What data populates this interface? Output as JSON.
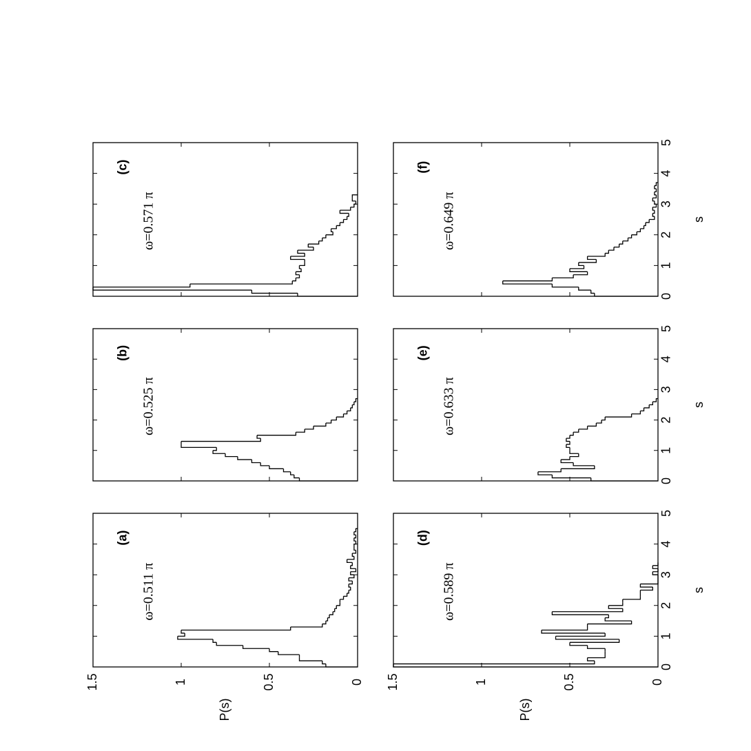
{
  "chart_data": [
    {
      "type": "histogram",
      "label": "(a)",
      "annotation": "ω=0.511 π",
      "ylabel": "P(s)",
      "xlim": [
        0,
        5
      ],
      "ylim": [
        0,
        1.5
      ],
      "xticks": [
        0,
        1,
        2,
        3,
        4,
        5
      ],
      "yticks": [
        0,
        0.5,
        1,
        1.5
      ],
      "bins": [
        0,
        0.1,
        0.2,
        0.3,
        0.4,
        0.5,
        0.6,
        0.7,
        0.8,
        0.9,
        1,
        1.1,
        1.2,
        1.3,
        1.4,
        1.5,
        1.6,
        1.7,
        1.8,
        1.9,
        2,
        2.1,
        2.2,
        2.3,
        2.4,
        2.5,
        2.6,
        2.7,
        2.8,
        2.9,
        3,
        3.1,
        3.2,
        3.3,
        3.4,
        3.5,
        3.6,
        3.7,
        3.8,
        3.9,
        4,
        4.1,
        4.2,
        4.3,
        4.4,
        4.5
      ],
      "values": [
        0.18,
        0.2,
        0.33,
        0.33,
        0.45,
        0.5,
        0.65,
        0.8,
        0.82,
        1.02,
        0.98,
        1.0,
        0.38,
        0.2,
        0.18,
        0.17,
        0.16,
        0.14,
        0.13,
        0.12,
        0.1,
        0.1,
        0.08,
        0.06,
        0.05,
        0.04,
        0.05,
        0.03,
        0.05,
        0.02,
        0.04,
        0.01,
        0.04,
        0.03,
        0.06,
        0.02,
        0.03,
        0.01,
        0.02,
        0.02,
        0.01,
        0.02,
        0.01,
        0.02,
        0.01
      ]
    },
    {
      "type": "histogram",
      "label": "(b)",
      "annotation": "ω=0.525 π",
      "xlim": [
        0,
        5
      ],
      "ylim": [
        0,
        1.5
      ],
      "xticks": [
        0,
        1,
        2,
        3,
        4,
        5
      ],
      "yticks": [
        0,
        0.5,
        1,
        1.5
      ],
      "bins": [
        0,
        0.1,
        0.2,
        0.3,
        0.4,
        0.5,
        0.6,
        0.7,
        0.8,
        0.9,
        1,
        1.1,
        1.2,
        1.3,
        1.4,
        1.5,
        1.6,
        1.7,
        1.8,
        1.9,
        2,
        2.1,
        2.2,
        2.3,
        2.4,
        2.5,
        2.6,
        2.7
      ],
      "values": [
        0.33,
        0.36,
        0.38,
        0.42,
        0.5,
        0.55,
        0.6,
        0.68,
        0.75,
        0.82,
        0.8,
        1.0,
        1.0,
        0.55,
        0.57,
        0.35,
        0.3,
        0.25,
        0.18,
        0.15,
        0.12,
        0.08,
        0.06,
        0.04,
        0.03,
        0.02,
        0.01
      ]
    },
    {
      "type": "histogram",
      "label": "(c)",
      "annotation": "ω=0.571 π",
      "xlim": [
        0,
        5
      ],
      "ylim": [
        0,
        1.5
      ],
      "xticks": [
        0,
        1,
        2,
        3,
        4,
        5
      ],
      "yticks": [
        0,
        0.5,
        1,
        1.5
      ],
      "bins": [
        0,
        0.1,
        0.2,
        0.3,
        0.4,
        0.5,
        0.6,
        0.7,
        0.8,
        0.9,
        1,
        1.1,
        1.2,
        1.3,
        1.4,
        1.5,
        1.6,
        1.7,
        1.8,
        1.9,
        2,
        2.1,
        2.2,
        2.3,
        2.4,
        2.5,
        2.6,
        2.7,
        2.8,
        2.9,
        3,
        3.1,
        3.2,
        3.3
      ],
      "values": [
        0.34,
        0.6,
        1.5,
        0.95,
        0.37,
        0.35,
        0.33,
        0.35,
        0.32,
        0.33,
        0.3,
        0.3,
        0.38,
        0.3,
        0.34,
        0.25,
        0.28,
        0.22,
        0.2,
        0.18,
        0.14,
        0.15,
        0.12,
        0.1,
        0.08,
        0.06,
        0.05,
        0.1,
        0.04,
        0.02,
        0.01,
        0.03,
        0.03
      ]
    },
    {
      "type": "histogram",
      "label": "(d)",
      "annotation": "ω=0.589 π",
      "xlabel": "s",
      "ylabel": "P(s)",
      "xlim": [
        0,
        5
      ],
      "ylim": [
        0,
        1.5
      ],
      "xticks": [
        0,
        1,
        2,
        3,
        4,
        5
      ],
      "yticks": [
        0,
        0.5,
        1,
        1.5
      ],
      "bins": [
        0,
        0.1,
        0.2,
        0.3,
        0.4,
        0.5,
        0.6,
        0.7,
        0.8,
        0.9,
        1,
        1.1,
        1.2,
        1.3,
        1.4,
        1.5,
        1.6,
        1.7,
        1.8,
        1.9,
        2,
        2.1,
        2.2,
        2.3,
        2.4,
        2.5,
        2.6,
        2.7,
        2.8,
        2.9,
        3,
        3.1,
        3.2,
        3.3,
        3.4
      ],
      "values": [
        1.5,
        0.36,
        0.4,
        0.3,
        0.3,
        0.3,
        0.4,
        0.5,
        0.22,
        0.58,
        0.3,
        0.66,
        0.4,
        0.4,
        0.15,
        0.3,
        0.28,
        0.6,
        0.2,
        0.28,
        0.2,
        0.2,
        0.1,
        0.1,
        0.1,
        0.03,
        0.1,
        0,
        0,
        0,
        0.03,
        0,
        0.03,
        0
      ]
    },
    {
      "type": "histogram",
      "label": "(e)",
      "annotation": "ω=0.633 π",
      "xlabel": "s",
      "xlim": [
        0,
        5
      ],
      "ylim": [
        0,
        1.5
      ],
      "xticks": [
        0,
        1,
        2,
        3,
        4,
        5
      ],
      "yticks": [
        0,
        0.5,
        1,
        1.5
      ],
      "bins": [
        0,
        0.1,
        0.2,
        0.3,
        0.4,
        0.5,
        0.6,
        0.7,
        0.8,
        0.9,
        1,
        1.1,
        1.2,
        1.3,
        1.4,
        1.5,
        1.6,
        1.7,
        1.8,
        1.9,
        2,
        2.1,
        2.2,
        2.3,
        2.4,
        2.5,
        2.6,
        2.7
      ],
      "values": [
        0.38,
        0.6,
        0.68,
        0.55,
        0.36,
        0.48,
        0.55,
        0.5,
        0.45,
        0.5,
        0.5,
        0.52,
        0.5,
        0.52,
        0.5,
        0.48,
        0.45,
        0.4,
        0.35,
        0.32,
        0.3,
        0.15,
        0.1,
        0.08,
        0.05,
        0.03,
        0.01
      ]
    },
    {
      "type": "histogram",
      "label": "(f)",
      "annotation": "ω=0.649 π",
      "xlabel": "s",
      "xlim": [
        0,
        5
      ],
      "ylim": [
        0,
        1.5
      ],
      "xticks": [
        0,
        1,
        2,
        3,
        4,
        5
      ],
      "yticks": [
        0,
        0.5,
        1,
        1.5
      ],
      "bins": [
        0,
        0.1,
        0.2,
        0.3,
        0.4,
        0.5,
        0.6,
        0.7,
        0.8,
        0.9,
        1,
        1.1,
        1.2,
        1.3,
        1.4,
        1.5,
        1.6,
        1.7,
        1.8,
        1.9,
        2,
        2.1,
        2.2,
        2.3,
        2.4,
        2.5,
        2.6,
        2.7,
        2.8,
        2.9,
        3,
        3.1,
        3.2,
        3.3,
        3.4,
        3.5,
        3.6,
        3.7
      ],
      "values": [
        0.36,
        0.38,
        0.45,
        0.6,
        0.88,
        0.6,
        0.48,
        0.4,
        0.5,
        0.42,
        0.45,
        0.35,
        0.4,
        0.3,
        0.28,
        0.25,
        0.22,
        0.2,
        0.17,
        0.15,
        0.12,
        0.1,
        0.08,
        0.07,
        0.05,
        0.02,
        0.03,
        0.02,
        0.03,
        0.01,
        0.02,
        0.03,
        0.01,
        0.02,
        0.01,
        0.02,
        0.01
      ]
    }
  ]
}
